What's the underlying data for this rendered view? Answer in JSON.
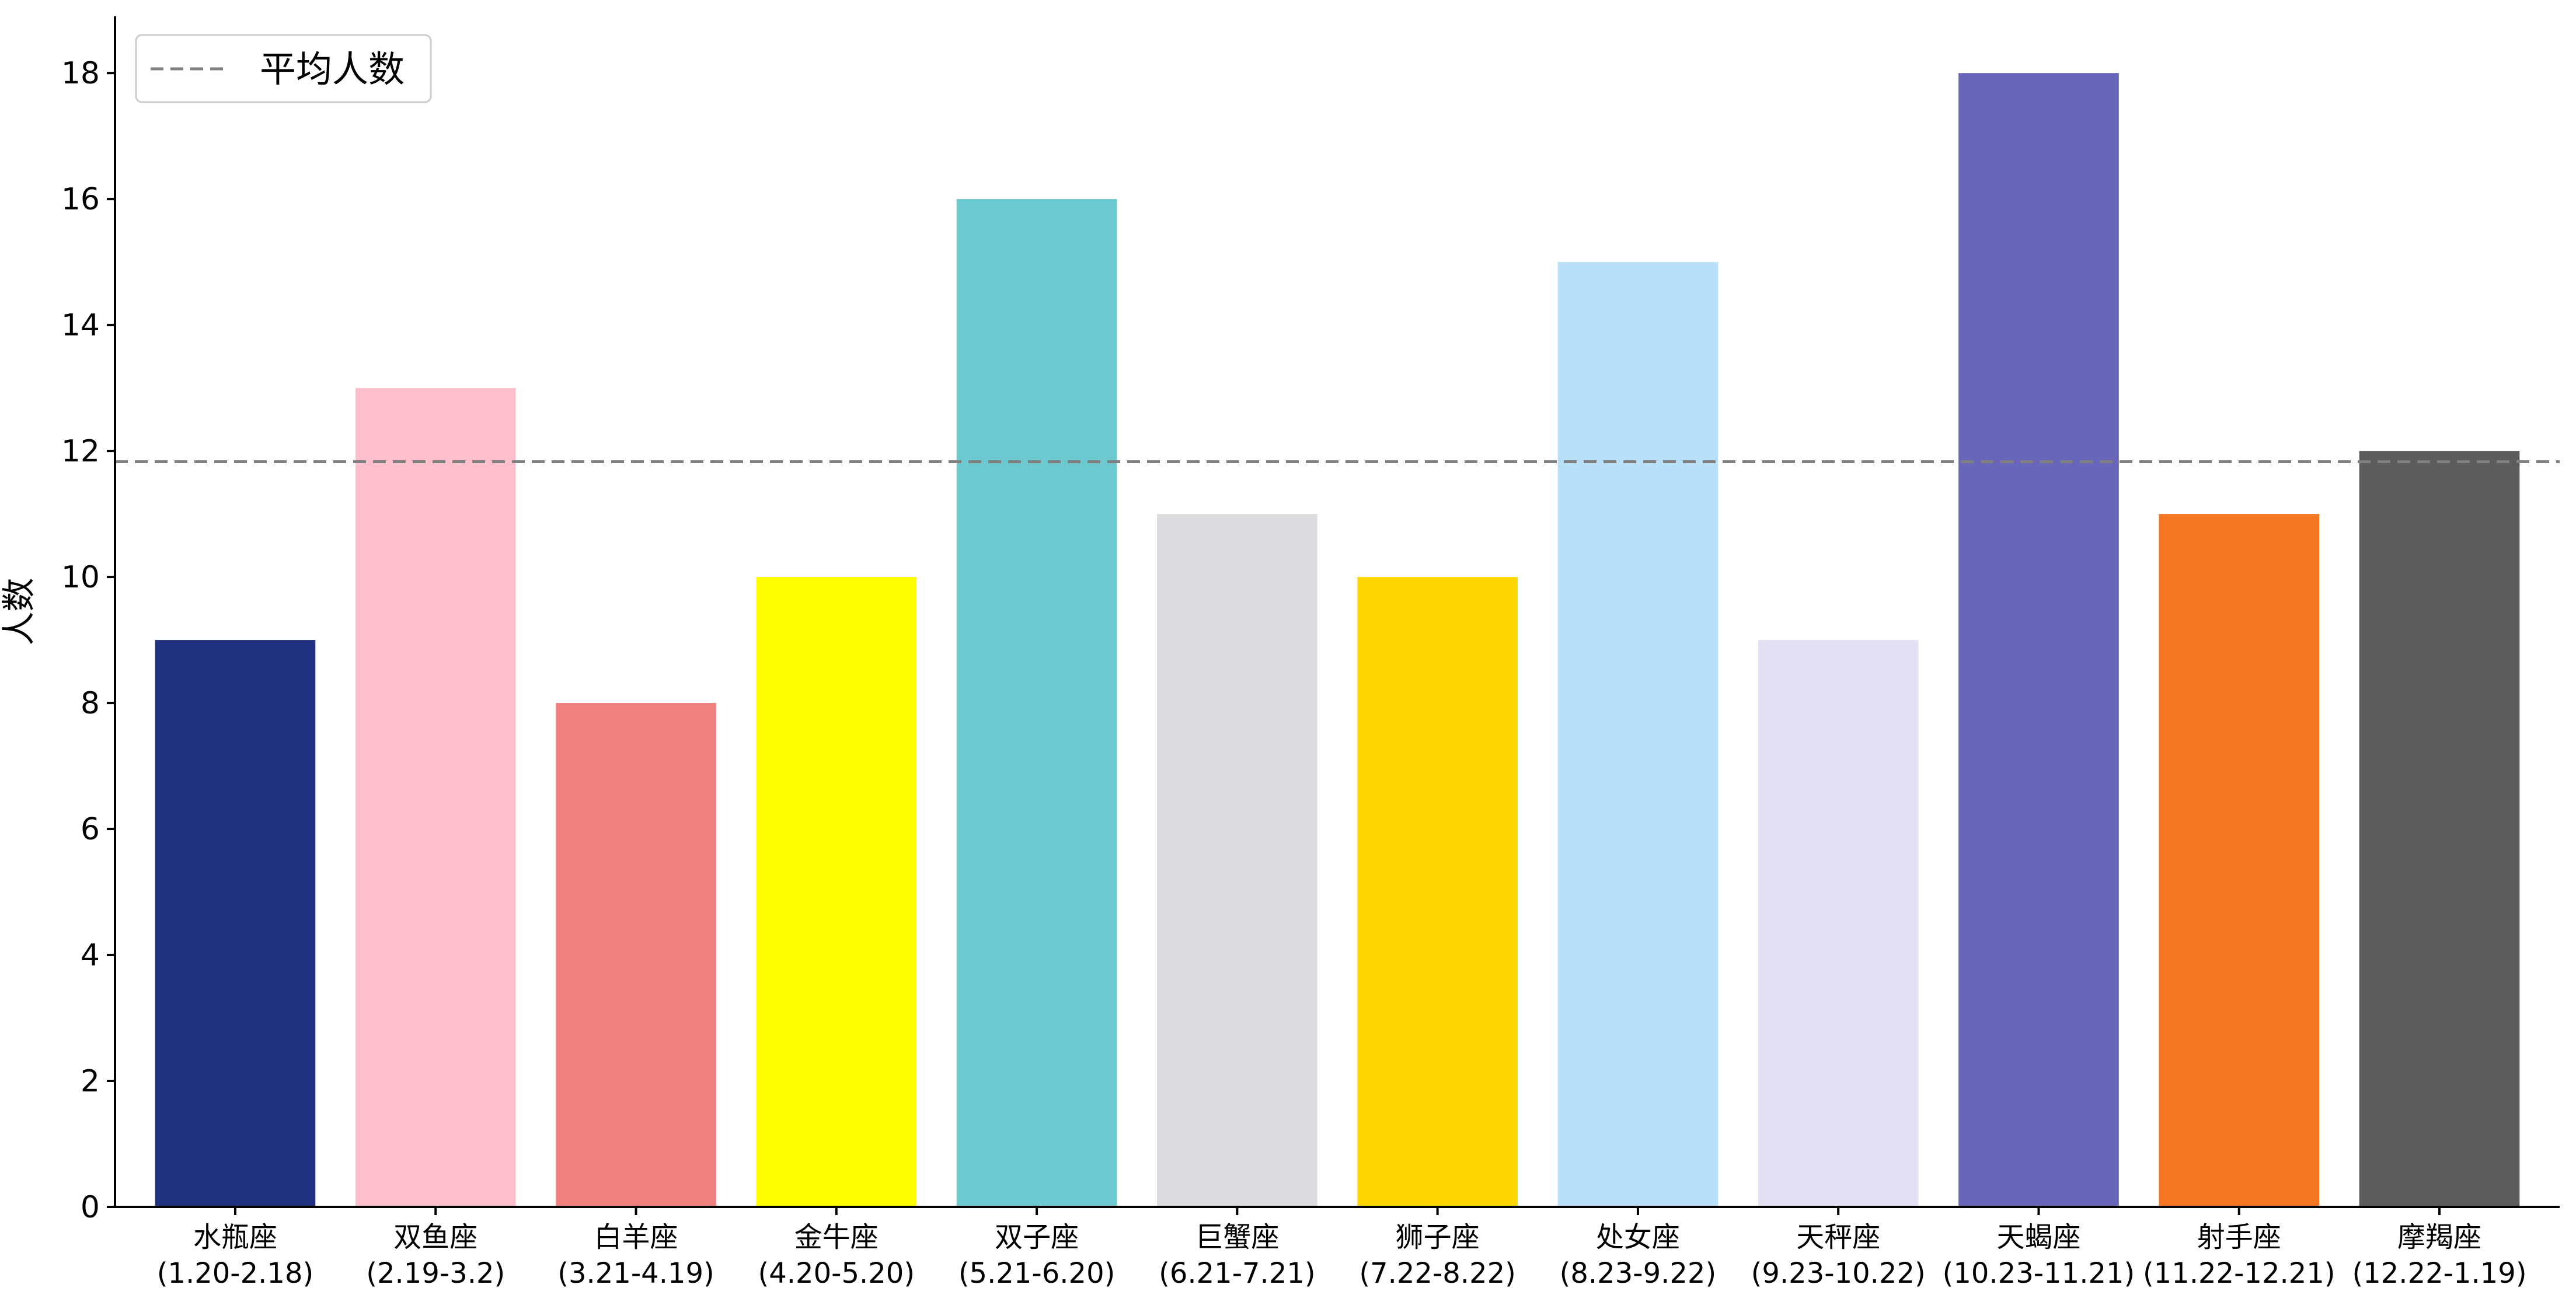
{
  "chart_data": {
    "type": "bar",
    "categories": [
      {
        "name": "水瓶座",
        "dates": "(1.20-2.18)"
      },
      {
        "name": "双鱼座",
        "dates": "(2.19-3.2)"
      },
      {
        "name": "白羊座",
        "dates": "(3.21-4.19)"
      },
      {
        "name": "金牛座",
        "dates": "(4.20-5.20)"
      },
      {
        "name": "双子座",
        "dates": "(5.21-6.20)"
      },
      {
        "name": "巨蟹座",
        "dates": "(6.21-7.21)"
      },
      {
        "name": "狮子座",
        "dates": "(7.22-8.22)"
      },
      {
        "name": "处女座",
        "dates": "(8.23-9.22)"
      },
      {
        "name": "天秤座",
        "dates": "(9.23-10.22)"
      },
      {
        "name": "天蝎座",
        "dates": "(10.23-11.21)"
      },
      {
        "name": "射手座",
        "dates": "(11.22-12.21)"
      },
      {
        "name": "摩羯座",
        "dates": "(12.22-1.19)"
      }
    ],
    "values": [
      9,
      13,
      8,
      10,
      16,
      11,
      10,
      15,
      9,
      18,
      11,
      12
    ],
    "colors": [
      "#20317f",
      "#ffbfcc",
      "#f08080",
      "#ffff00",
      "#6dc9d0",
      "#dcdbde",
      "#ffd700",
      "#b8e0f8",
      "#e4e1f4",
      "#6766bb",
      "#f47522",
      "#5c5c5c"
    ],
    "average": 11.83,
    "average_color": "#808080",
    "legend": {
      "label": "平均人数",
      "placement": "top-left"
    },
    "ylabel": "人数",
    "ylim": [
      0,
      18.9
    ],
    "yticks": [
      0,
      2,
      4,
      6,
      8,
      10,
      12,
      14,
      16,
      18
    ],
    "grid": false
  }
}
